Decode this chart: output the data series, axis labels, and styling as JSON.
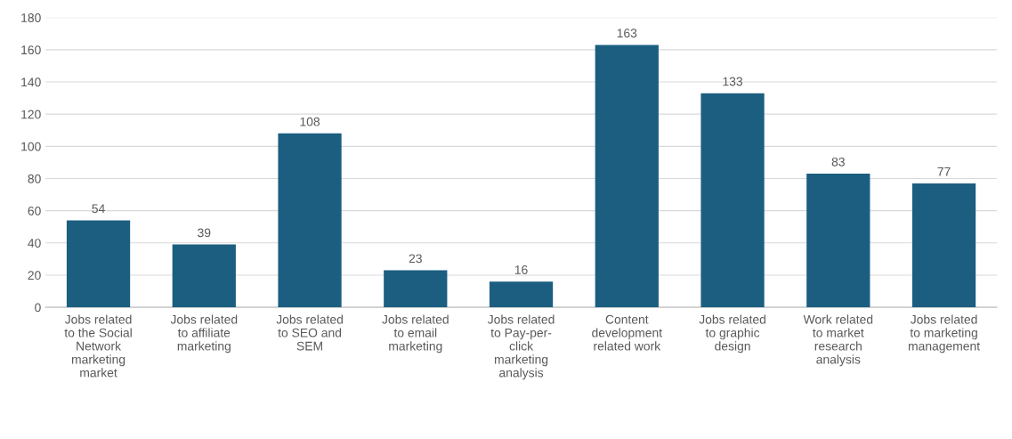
{
  "chart_data": {
    "type": "bar",
    "categories": [
      "Jobs related\nto the Social\nNetwork\nmarketing\nmarket",
      "Jobs related\nto affiliate\nmarketing",
      "Jobs related\nto SEO and\nSEM",
      "Jobs related\nto email\nmarketing",
      "Jobs related\nto Pay-per-\nclick\nmarketing\nanalysis",
      "Content\ndevelopment\nrelated work",
      "Jobs related\nto graphic\ndesign",
      "Work related\nto market\nresearch\nanalysis",
      "Jobs related\nto marketing\nmanagement"
    ],
    "values": [
      54,
      39,
      108,
      23,
      16,
      163,
      133,
      83,
      77
    ],
    "color": "#1b5e80",
    "ylim": [
      0,
      180
    ],
    "yticks": [
      0,
      20,
      40,
      60,
      80,
      100,
      120,
      140,
      160,
      180
    ],
    "grid": "y",
    "data_labels": true
  }
}
